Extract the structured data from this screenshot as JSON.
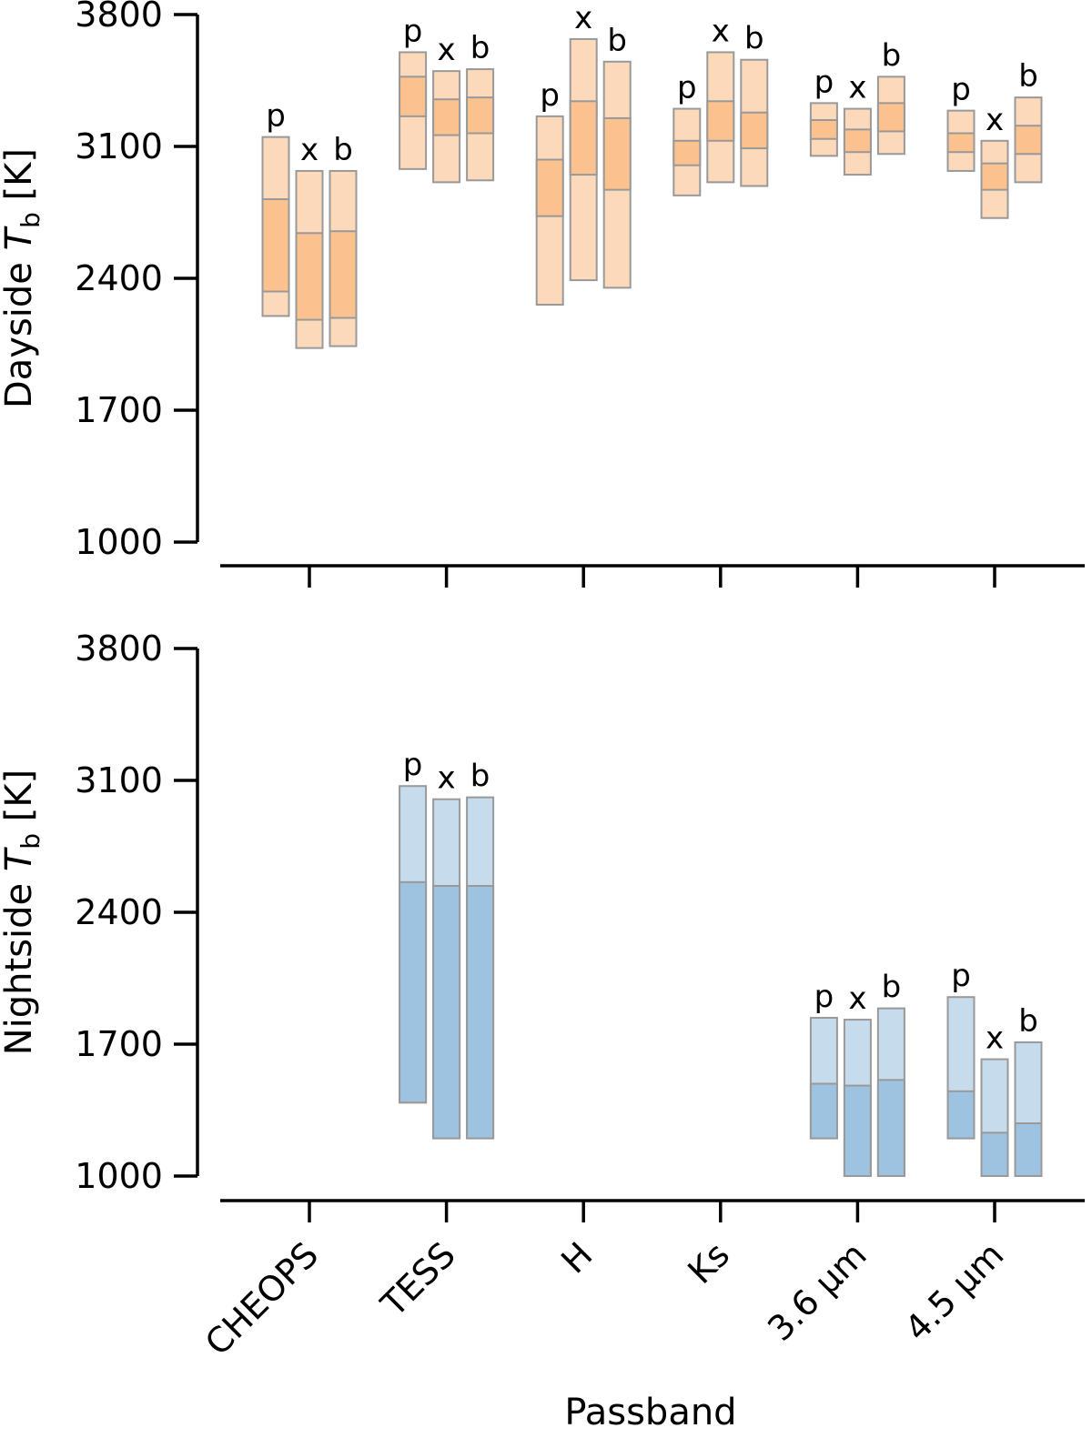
{
  "chart_data": [
    {
      "type": "bar",
      "panel": "dayside",
      "ylabel": "Dayside T_b [K]",
      "ylabel_parts": {
        "prefix": "Dayside ",
        "symbol": "T",
        "subscript": "b",
        "suffix": " [K]"
      },
      "ylim": [
        1000,
        3800
      ],
      "yticks": [
        1000,
        1700,
        2400,
        3100,
        3800
      ],
      "categories": [
        "CHEOPS",
        "TESS",
        "H",
        "Ks",
        "3.6 μm",
        "4.5 μm"
      ],
      "colors": {
        "outer": "#fdd9bb",
        "inner": "#fbc290",
        "edge": "#999999"
      },
      "x_tick_labels_shown": false,
      "series": [
        {
          "name": "p",
          "outer": [
            [
              2200,
              3150
            ],
            [
              2980,
              3600
            ],
            [
              2260,
              3260
            ],
            [
              2840,
              3300
            ],
            [
              3050,
              3330
            ],
            [
              2970,
              3290
            ]
          ],
          "inner": [
            [
              2330,
              2820
            ],
            [
              3260,
              3470
            ],
            [
              2730,
              3030
            ],
            [
              3000,
              3130
            ],
            [
              3140,
              3240
            ],
            [
              3070,
              3170
            ]
          ]
        },
        {
          "name": "x",
          "outer": [
            [
              2030,
              2970
            ],
            [
              2910,
              3500
            ],
            [
              2390,
              3670
            ],
            [
              2910,
              3600
            ],
            [
              2950,
              3300
            ],
            [
              2720,
              3130
            ]
          ],
          "inner": [
            [
              2180,
              2640
            ],
            [
              3160,
              3350
            ],
            [
              2950,
              3340
            ],
            [
              3130,
              3340
            ],
            [
              3070,
              3190
            ],
            [
              2870,
              3010
            ]
          ]
        },
        {
          "name": "b",
          "outer": [
            [
              2040,
              2970
            ],
            [
              2920,
              3510
            ],
            [
              2350,
              3550
            ],
            [
              2890,
              3560
            ],
            [
              3060,
              3470
            ],
            [
              2910,
              3360
            ]
          ],
          "inner": [
            [
              2190,
              2650
            ],
            [
              3170,
              3360
            ],
            [
              2870,
              3250
            ],
            [
              3090,
              3280
            ],
            [
              3180,
              3330
            ],
            [
              3060,
              3210
            ]
          ]
        }
      ]
    },
    {
      "type": "bar",
      "panel": "nightside",
      "ylabel": "Nightside T_b [K]",
      "ylabel_parts": {
        "prefix": "Nightside ",
        "symbol": "T",
        "subscript": "b",
        "suffix": " [K]"
      },
      "ylim": [
        1000,
        3800
      ],
      "yticks": [
        1000,
        1700,
        2400,
        3100,
        3800
      ],
      "xlabel": "Passband",
      "categories": [
        "CHEOPS",
        "TESS",
        "H",
        "Ks",
        "3.6 μm",
        "4.5 μm"
      ],
      "colors": {
        "outer": "#c6dbeb",
        "inner": "#9dc3e0",
        "edge": "#999999"
      },
      "x_tick_labels_shown": true,
      "series": [
        {
          "name": "p",
          "outer": [
            null,
            [
              1390,
              3070
            ],
            null,
            null,
            [
              1200,
              1840
            ],
            [
              1200,
              1950
            ]
          ],
          "inner": [
            null,
            [
              1390,
              2560
            ],
            null,
            null,
            [
              1200,
              1490
            ],
            [
              1200,
              1450
            ]
          ]
        },
        {
          "name": "x",
          "outer": [
            null,
            [
              1200,
              3000
            ],
            null,
            null,
            [
              1000,
              1830
            ],
            [
              1000,
              1620
            ]
          ],
          "inner": [
            null,
            [
              1200,
              2540
            ],
            null,
            null,
            [
              1000,
              1480
            ],
            [
              1000,
              1230
            ]
          ]
        },
        {
          "name": "b",
          "outer": [
            null,
            [
              1200,
              3010
            ],
            null,
            null,
            [
              1000,
              1890
            ],
            [
              1000,
              1710
            ]
          ],
          "inner": [
            null,
            [
              1200,
              2540
            ],
            null,
            null,
            [
              1000,
              1510
            ],
            [
              1000,
              1280
            ]
          ]
        }
      ]
    }
  ]
}
